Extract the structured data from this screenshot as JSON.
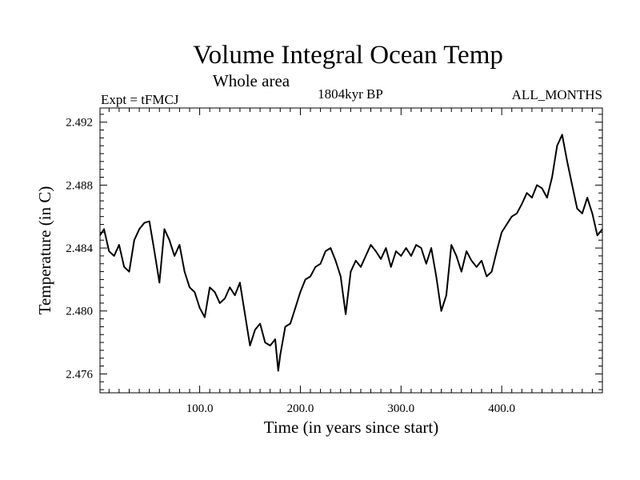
{
  "chart_data": {
    "type": "line",
    "title": "Volume Integral Ocean Temp",
    "subtitle": "Whole area",
    "left_label": "Expt = tFMCJ",
    "center_label": "1804kyr BP",
    "right_label": "ALL_MONTHS",
    "xlabel": "Time (in years since start)",
    "ylabel": "Temperature (in C)",
    "xlim": [
      1,
      500
    ],
    "ylim": [
      2.4748,
      2.4929
    ],
    "x_ticks": [
      100,
      200,
      300,
      400
    ],
    "x_tick_labels": [
      "100.0",
      "200.0",
      "300.0",
      "400.0"
    ],
    "y_ticks": [
      2.476,
      2.48,
      2.484,
      2.488,
      2.492
    ],
    "y_tick_labels": [
      "2.476",
      "2.480",
      "2.484",
      "2.488",
      "2.492"
    ],
    "grid": false,
    "series": [
      {
        "name": "Volume Integral Ocean Temp",
        "x": [
          1,
          5,
          10,
          15,
          20,
          25,
          30,
          35,
          40,
          45,
          50,
          55,
          60,
          65,
          70,
          75,
          80,
          85,
          90,
          95,
          100,
          105,
          110,
          115,
          120,
          125,
          130,
          135,
          140,
          145,
          150,
          155,
          160,
          165,
          170,
          175,
          178,
          180,
          185,
          190,
          195,
          200,
          205,
          210,
          215,
          220,
          225,
          230,
          235,
          240,
          245,
          250,
          255,
          260,
          265,
          270,
          275,
          280,
          285,
          290,
          295,
          300,
          305,
          310,
          315,
          320,
          325,
          330,
          335,
          340,
          345,
          350,
          355,
          360,
          365,
          370,
          375,
          380,
          385,
          390,
          395,
          400,
          405,
          410,
          415,
          420,
          425,
          430,
          435,
          440,
          445,
          450,
          455,
          460,
          465,
          470,
          475,
          480,
          485,
          490,
          495,
          500
        ],
        "y": [
          2.4848,
          2.4852,
          2.4838,
          2.4835,
          2.4842,
          2.4828,
          2.4825,
          2.4845,
          2.4852,
          2.4856,
          2.4857,
          2.4838,
          2.4818,
          2.4852,
          2.4845,
          2.4835,
          2.4842,
          2.4825,
          2.4815,
          2.4812,
          2.4802,
          2.4796,
          2.4815,
          2.4812,
          2.4805,
          2.4808,
          2.4815,
          2.481,
          2.4818,
          2.4798,
          2.4778,
          2.4788,
          2.4792,
          2.478,
          2.4778,
          2.4782,
          2.4762,
          2.4772,
          2.479,
          2.4792,
          2.4802,
          2.4812,
          2.482,
          2.4822,
          2.4828,
          2.483,
          2.4838,
          2.484,
          2.4832,
          2.4822,
          2.4798,
          2.4825,
          2.4832,
          2.4828,
          2.4835,
          2.4842,
          2.4838,
          2.4833,
          2.484,
          2.4828,
          2.4838,
          2.4835,
          2.484,
          2.4835,
          2.4842,
          2.484,
          2.483,
          2.484,
          2.4822,
          2.48,
          2.481,
          2.4842,
          2.4835,
          2.4825,
          2.4838,
          2.4832,
          2.4828,
          2.4832,
          2.4822,
          2.4825,
          2.4838,
          2.485,
          2.4855,
          2.486,
          2.4862,
          2.4868,
          2.4875,
          2.4872,
          2.488,
          2.4878,
          2.4872,
          2.4885,
          2.4905,
          2.4912,
          2.4895,
          2.488,
          2.4865,
          2.4862,
          2.4872,
          2.4862,
          2.4848,
          2.4852
        ]
      }
    ]
  }
}
